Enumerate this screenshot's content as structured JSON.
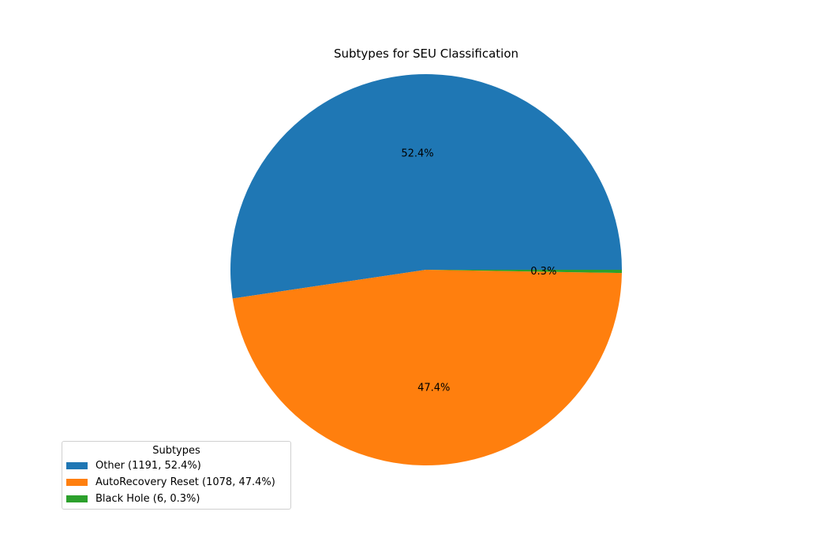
{
  "chart_data": {
    "type": "pie",
    "title": "Subtypes for SEU Classification",
    "slices": [
      {
        "label": "Other",
        "value": 1191,
        "percent": 52.4,
        "pct_label": "52.4%",
        "color": "#1f77b4",
        "legend_label": "Other (1191, 52.4%)"
      },
      {
        "label": "AutoRecovery Reset",
        "value": 1078,
        "percent": 47.4,
        "pct_label": "47.4%",
        "color": "#ff7f0e",
        "legend_label": "AutoRecovery Reset (1078, 47.4%)"
      },
      {
        "label": "Black Hole",
        "value": 6,
        "percent": 0.3,
        "pct_label": "0.3%",
        "color": "#2ca02c",
        "legend_label": "Black Hole (6, 0.3%)"
      }
    ],
    "start_angle_deg": 0,
    "direction": "counterclockwise",
    "legend": {
      "title": "Subtypes",
      "placement": "lower-left"
    }
  }
}
